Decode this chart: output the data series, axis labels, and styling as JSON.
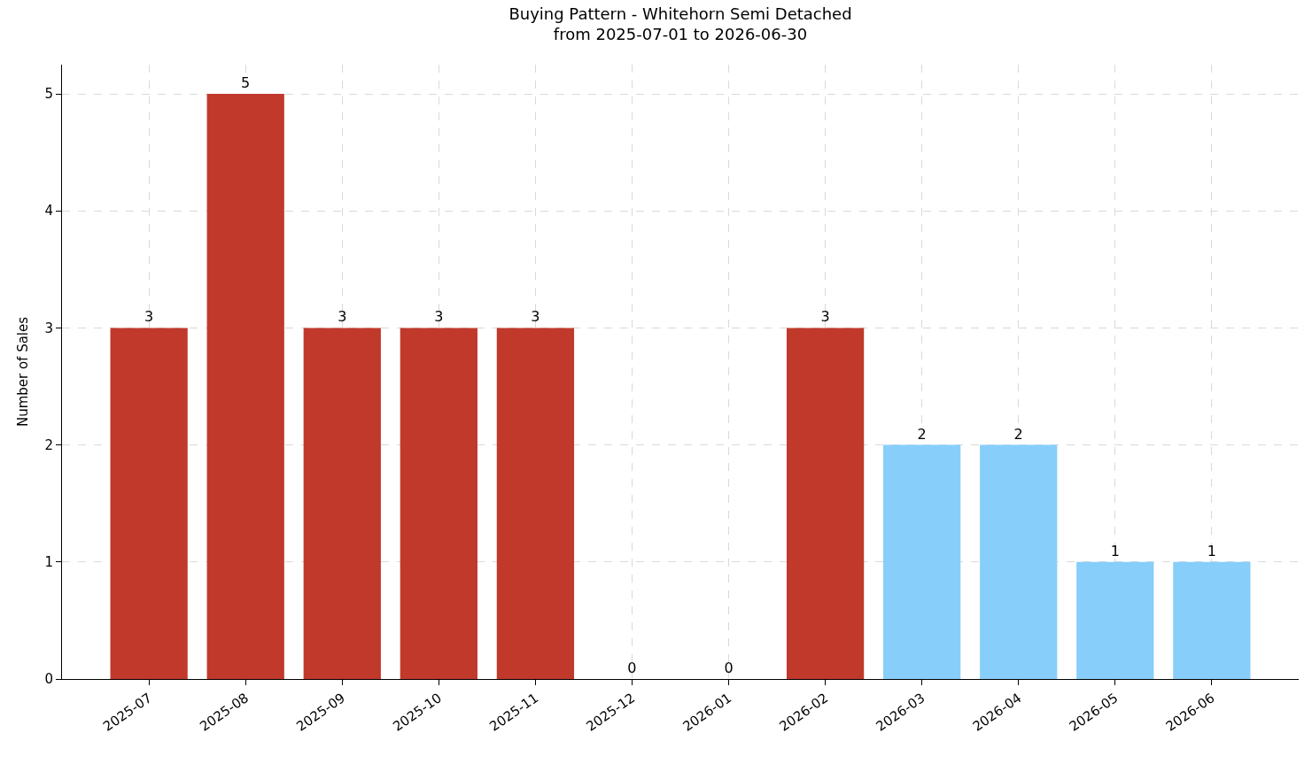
{
  "chart_data": {
    "type": "bar",
    "title": "Buying Pattern - Whitehorn Semi Detached\nfrom 2025-07-01 to 2026-06-30",
    "ylabel": "Number of Sales",
    "categories": [
      "2025-07",
      "2025-08",
      "2025-09",
      "2025-10",
      "2025-11",
      "2025-12",
      "2026-01",
      "2026-02",
      "2026-03",
      "2026-04",
      "2026-05",
      "2026-06"
    ],
    "values": [
      3,
      5,
      3,
      3,
      3,
      0,
      0,
      3,
      2,
      2,
      1,
      1
    ],
    "colors": [
      "#c0392b",
      "#c0392b",
      "#c0392b",
      "#c0392b",
      "#c0392b",
      "#c0392b",
      "#c0392b",
      "#c0392b",
      "#87cefa",
      "#87cefa",
      "#87cefa",
      "#87cefa"
    ],
    "ylim": [
      0,
      5.25
    ],
    "yticks": [
      0,
      1,
      2,
      3,
      4,
      5
    ],
    "grid": true,
    "data_labels": true
  }
}
